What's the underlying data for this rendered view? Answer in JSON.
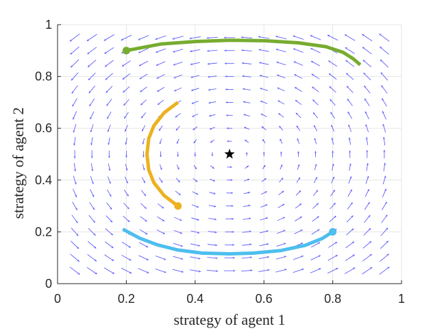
{
  "chart_data": {
    "type": "line",
    "title": "",
    "xlabel": "strategy of agent 1",
    "ylabel": "strategy of agent 2",
    "xlim": [
      0,
      1
    ],
    "ylim": [
      0,
      1
    ],
    "x_ticks": [
      "0",
      "0.2",
      "0.4",
      "0.6",
      "0.8",
      "1"
    ],
    "y_ticks": [
      "0",
      "0.2",
      "0.4",
      "0.6",
      "0.8",
      "1"
    ],
    "grid": true,
    "equilibrium_marker": {
      "x": 0.5,
      "y": 0.5,
      "symbol": "star",
      "color": "#000000"
    },
    "vector_field": {
      "color": "#4b4bff",
      "center": [
        0.5,
        0.5
      ],
      "rotation": "counterclockwise",
      "grid_step": 0.05
    },
    "series": [
      {
        "color": "#77ac30",
        "start": [
          0.2,
          0.9
        ],
        "points": [
          [
            0.2,
            0.9
          ],
          [
            0.3,
            0.925
          ],
          [
            0.4,
            0.935
          ],
          [
            0.5,
            0.94
          ],
          [
            0.6,
            0.938
          ],
          [
            0.7,
            0.93
          ],
          [
            0.78,
            0.915
          ],
          [
            0.83,
            0.893
          ],
          [
            0.86,
            0.868
          ],
          [
            0.88,
            0.845
          ]
        ]
      },
      {
        "color": "#edb120",
        "start": [
          0.35,
          0.3
        ],
        "points": [
          [
            0.35,
            0.3
          ],
          [
            0.31,
            0.34
          ],
          [
            0.28,
            0.39
          ],
          [
            0.265,
            0.44
          ],
          [
            0.26,
            0.5
          ],
          [
            0.265,
            0.56
          ],
          [
            0.28,
            0.61
          ],
          [
            0.31,
            0.66
          ],
          [
            0.35,
            0.7
          ]
        ]
      },
      {
        "color": "#4dbeee",
        "start": [
          0.8,
          0.2
        ],
        "points": [
          [
            0.8,
            0.2
          ],
          [
            0.77,
            0.175
          ],
          [
            0.72,
            0.148
          ],
          [
            0.65,
            0.128
          ],
          [
            0.57,
            0.118
          ],
          [
            0.5,
            0.115
          ],
          [
            0.42,
            0.118
          ],
          [
            0.35,
            0.13
          ],
          [
            0.29,
            0.15
          ],
          [
            0.24,
            0.175
          ],
          [
            0.19,
            0.21
          ]
        ]
      }
    ]
  }
}
